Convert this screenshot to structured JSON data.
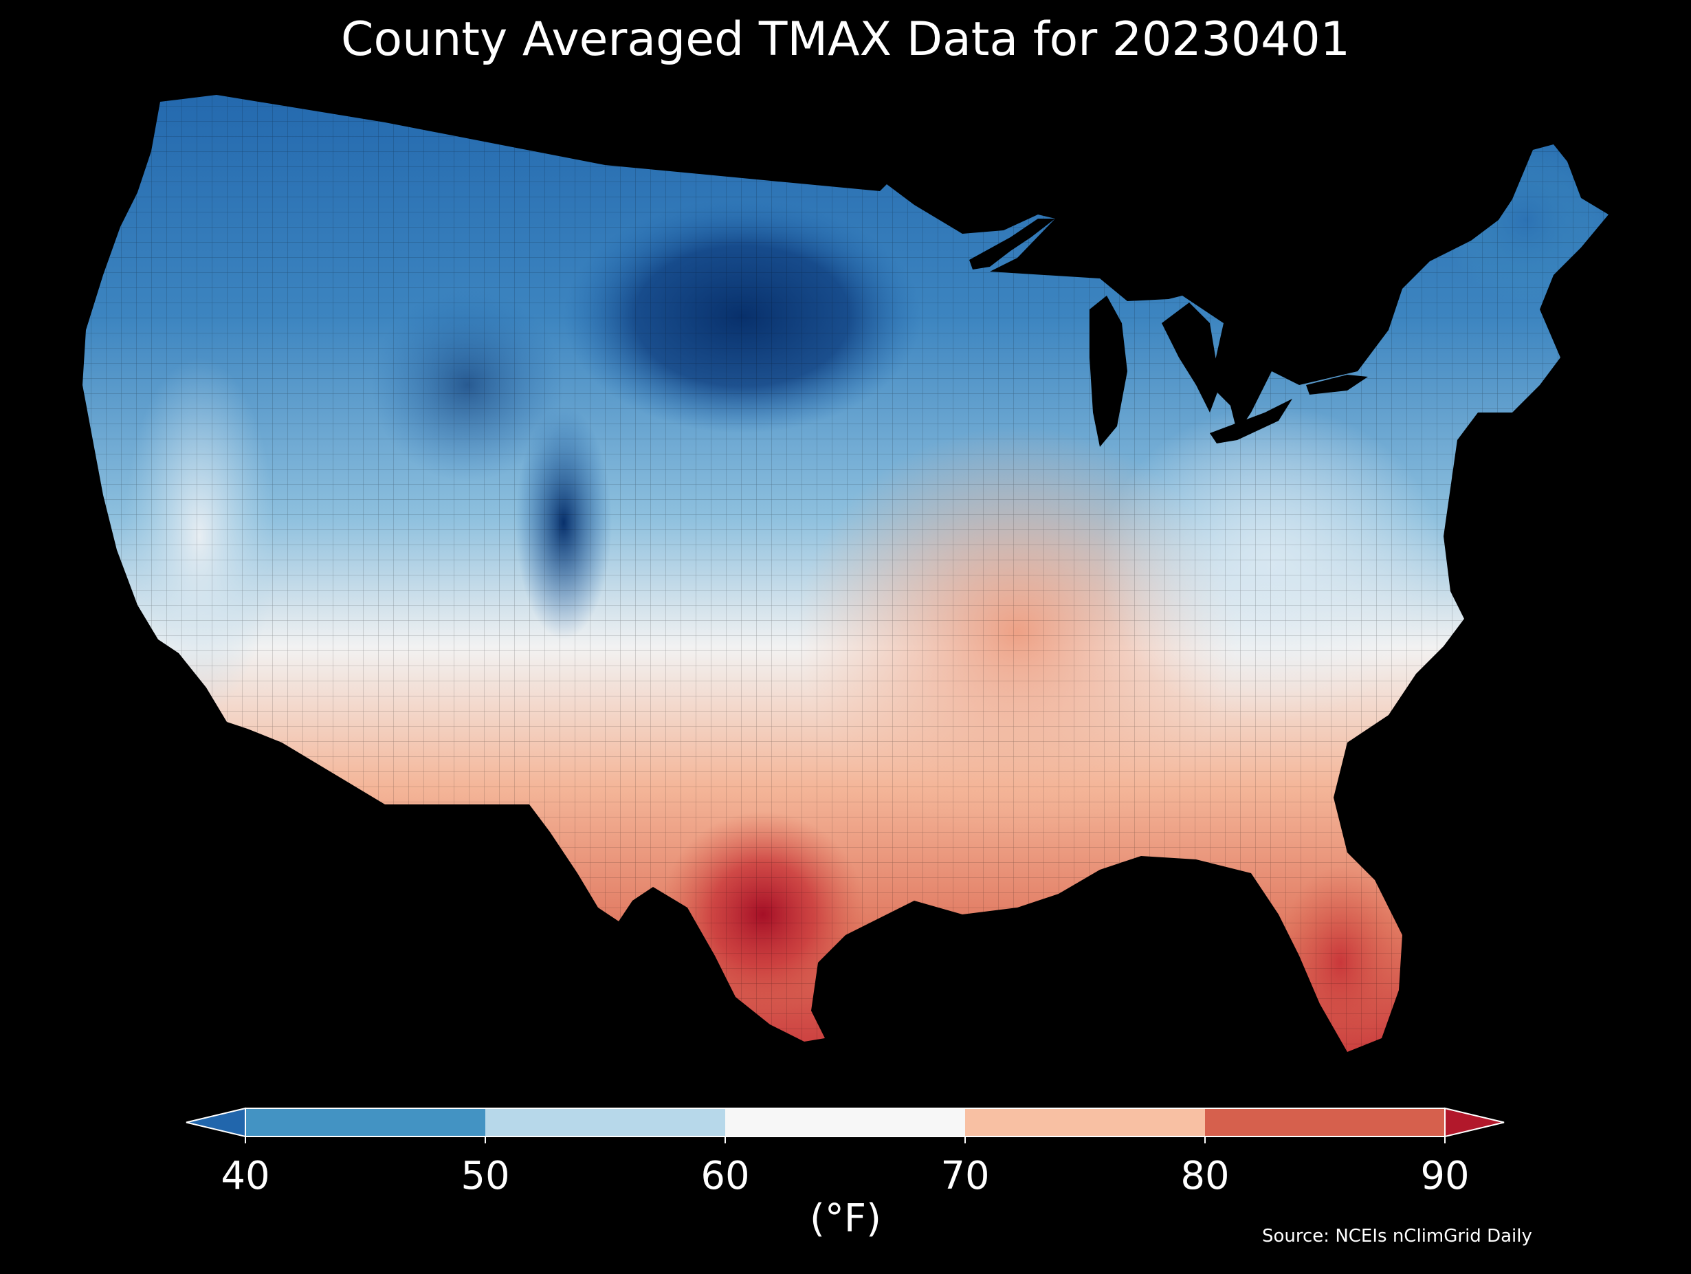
{
  "title": "County Averaged TMAX Data for 20230401",
  "source": "Source: NCEIs nClimGrid Daily",
  "colorbar": {
    "label": "(°F)",
    "ticks": [
      "40",
      "50",
      "60",
      "70",
      "80",
      "90"
    ],
    "bins": [
      {
        "range": "<40",
        "color": "#2166ac"
      },
      {
        "range": "40-50",
        "color": "#4393c3"
      },
      {
        "range": "50-60",
        "color": "#b7d8ea"
      },
      {
        "range": "60-70",
        "color": "#f7f7f7"
      },
      {
        "range": "70-80",
        "color": "#f8c0a3"
      },
      {
        "range": "80-90",
        "color": "#d6604d"
      },
      {
        "range": ">90",
        "color": "#b2182b"
      }
    ],
    "extend": "both"
  },
  "colors": {
    "background": "#000000",
    "text": "#ffffff"
  }
}
